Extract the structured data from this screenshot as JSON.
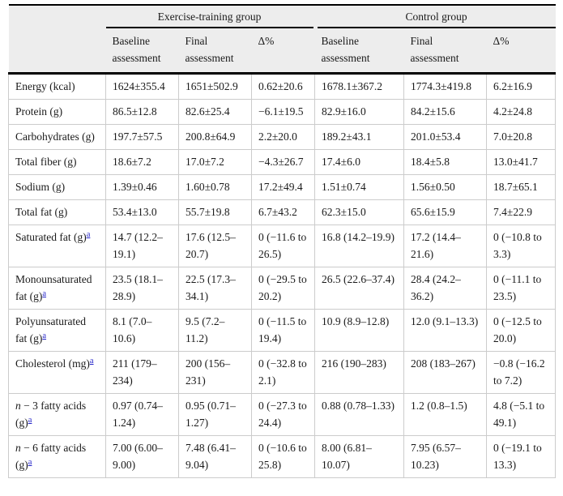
{
  "table": {
    "colors": {
      "header_bg": "#ededed",
      "grid": "#cccccc",
      "rule": "#000000",
      "link": "#2323c8",
      "text": "#1a1a1a"
    },
    "footnote_marker": "a",
    "header": {
      "groups": [
        "Exercise-training group",
        "Control group"
      ],
      "subheaders": [
        "Baseline assessment",
        "Final assessment",
        "Δ%",
        "Baseline assessment",
        "Final assessment",
        "Δ%"
      ]
    },
    "rows": [
      {
        "label": "Energy (kcal)",
        "italic_prefix": "",
        "footnote": false,
        "values": [
          "1624±355.4",
          "1651±502.9",
          "0.62±20.6",
          "1678.1±367.2",
          "1774.3±419.8",
          "6.2±16.9"
        ]
      },
      {
        "label": "Protein (g)",
        "italic_prefix": "",
        "footnote": false,
        "values": [
          "86.5±12.8",
          "82.6±25.4",
          "−6.1±19.5",
          "82.9±16.0",
          "84.2±15.6",
          "4.2±24.8"
        ]
      },
      {
        "label": "Carbohydrates (g)",
        "italic_prefix": "",
        "footnote": false,
        "values": [
          "197.7±57.5",
          "200.8±64.9",
          "2.2±20.0",
          "189.2±43.1",
          "201.0±53.4",
          "7.0±20.8"
        ]
      },
      {
        "label": "Total fiber (g)",
        "italic_prefix": "",
        "footnote": false,
        "values": [
          "18.6±7.2",
          "17.0±7.2",
          "−4.3±26.7",
          "17.4±6.0",
          "18.4±5.8",
          "13.0±41.7"
        ]
      },
      {
        "label": "Sodium (g)",
        "italic_prefix": "",
        "footnote": false,
        "values": [
          "1.39±0.46",
          "1.60±0.78",
          "17.2±49.4",
          "1.51±0.74",
          "1.56±0.50",
          "18.7±65.1"
        ]
      },
      {
        "label": "Total fat (g)",
        "italic_prefix": "",
        "footnote": false,
        "values": [
          "53.4±13.0",
          "55.7±19.8",
          "6.7±43.2",
          "62.3±15.0",
          "65.6±15.9",
          "7.4±22.9"
        ]
      },
      {
        "label": "Saturated fat (g)",
        "italic_prefix": "",
        "footnote": true,
        "values": [
          "14.7 (12.2–19.1)",
          "17.6 (12.5–20.7)",
          "0 (−11.6 to 26.5)",
          "16.8 (14.2–19.9)",
          "17.2 (14.4–21.6)",
          "0 (−10.8 to 3.3)"
        ]
      },
      {
        "label": "Monounsaturated fat (g)",
        "italic_prefix": "",
        "footnote": true,
        "values": [
          "23.5 (18.1–28.9)",
          "22.5 (17.3–34.1)",
          "0 (−29.5 to 20.2)",
          "26.5 (22.6–37.4)",
          "28.4 (24.2–36.2)",
          "0 (−11.1 to 23.5)"
        ]
      },
      {
        "label": "Polyunsaturated fat (g)",
        "italic_prefix": "",
        "footnote": true,
        "values": [
          "8.1 (7.0–10.6)",
          "9.5 (7.2–11.2)",
          "0 (−11.5 to 19.4)",
          "10.9 (8.9–12.8)",
          "12.0 (9.1–13.3)",
          "0 (−12.5 to 20.0)"
        ]
      },
      {
        "label": "Cholesterol (mg)",
        "italic_prefix": "",
        "footnote": true,
        "values": [
          "211 (179–234)",
          "200 (156–231)",
          "0 (−32.8 to 2.1)",
          "216 (190–283)",
          "208 (183–267)",
          "−0.8 (−16.2 to 7.2)"
        ]
      },
      {
        "label": " − 3 fatty acids (g)",
        "italic_prefix": "n",
        "footnote": true,
        "values": [
          "0.97 (0.74–1.24)",
          "0.95 (0.71–1.27)",
          "0 (−27.3 to 24.4)",
          "0.88 (0.78–1.33)",
          "1.2 (0.8–1.5)",
          "4.8 (−5.1 to 49.1)"
        ]
      },
      {
        "label": " − 6 fatty acids (g)",
        "italic_prefix": "n",
        "footnote": true,
        "values": [
          "7.00 (6.00–9.00)",
          "7.48 (6.41–9.04)",
          "0 (−10.6 to 25.8)",
          "8.00 (6.81–10.07)",
          "7.95 (6.57–10.23)",
          "0 (−19.1 to 13.3)"
        ]
      }
    ]
  }
}
